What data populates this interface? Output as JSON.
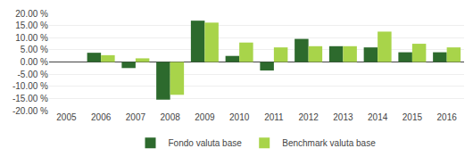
{
  "chart_data": {
    "type": "bar",
    "categories": [
      "2005",
      "2006",
      "2007",
      "2008",
      "2009",
      "2010",
      "2011",
      "2012",
      "2013",
      "2014",
      "2015",
      "2016"
    ],
    "series": [
      {
        "name": "Fondo valuta base",
        "color": "#2d6a2d",
        "values": [
          0.0,
          3.8,
          -2.5,
          -15.5,
          17.0,
          2.5,
          -3.5,
          9.5,
          6.5,
          6.0,
          4.0,
          4.0
        ]
      },
      {
        "name": "Benchmark valuta base",
        "color": "#a8d44a",
        "values": [
          0.0,
          2.8,
          1.5,
          -13.5,
          16.2,
          8.0,
          6.0,
          6.5,
          6.5,
          12.5,
          7.5,
          6.0
        ]
      }
    ],
    "ylim": [
      -20,
      20
    ],
    "yticks": [
      {
        "value": -20,
        "label": "-20.00 %"
      },
      {
        "value": -15,
        "label": "-15.00 %"
      },
      {
        "value": -10,
        "label": "-10.00 %"
      },
      {
        "value": -5,
        "label": "-5.00 %"
      },
      {
        "value": 0,
        "label": "0.00 %"
      },
      {
        "value": 5,
        "label": "5.00 %"
      },
      {
        "value": 10,
        "label": "10.00 %"
      },
      {
        "value": 15,
        "label": "15.00 %"
      },
      {
        "value": 20,
        "label": "20.00 %"
      }
    ],
    "grid": true,
    "legend": "bottom"
  }
}
